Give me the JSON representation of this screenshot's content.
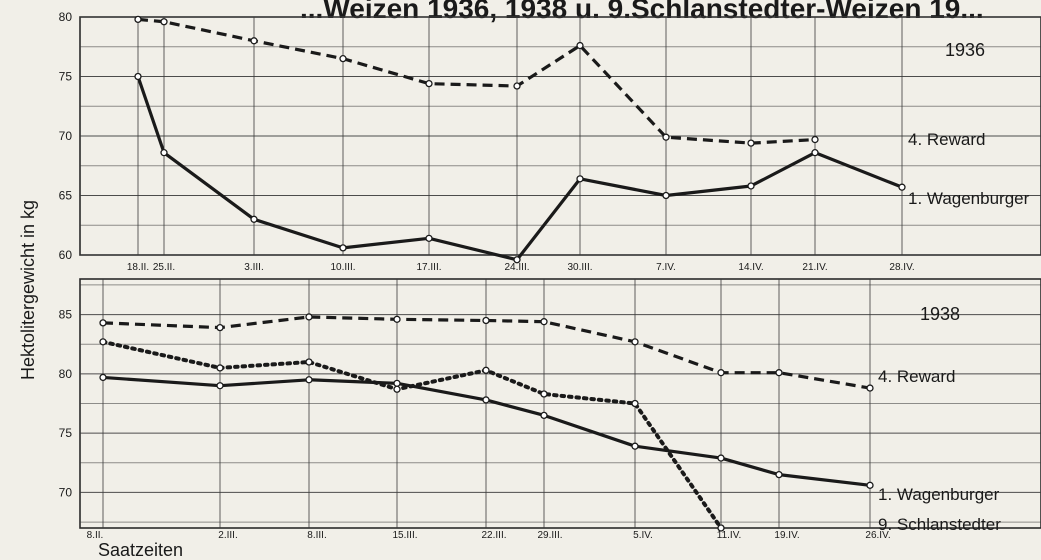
{
  "title": "...Weizen 1936, 1938 u. 9.Schlanstedter-Weizen 19...",
  "ylabel": "Hektolitergewicht in kg",
  "xlabel": "Saatzeiten",
  "chart_data": [
    {
      "type": "line",
      "year_label": "1936",
      "ylim": [
        60,
        80
      ],
      "yticks": [
        "60",
        "65",
        "70",
        "75",
        "80"
      ],
      "x": [
        "18.II.",
        "25.II.",
        "3.III.",
        "10.III.",
        "17.III.",
        "24.III.",
        "30.III.",
        "7.IV.",
        "14.IV.",
        "21.IV.",
        "28.IV."
      ],
      "series": [
        {
          "name": "4. Reward",
          "style": "dashed",
          "values": [
            79.8,
            79.6,
            78.0,
            76.5,
            74.4,
            74.2,
            77.6,
            69.9,
            69.4,
            69.7,
            null
          ]
        },
        {
          "name": "1. Wagenburger",
          "style": "solid",
          "values": [
            75.0,
            68.6,
            63.0,
            60.6,
            61.4,
            59.6,
            66.4,
            65.0,
            65.8,
            68.6,
            65.7
          ]
        }
      ]
    },
    {
      "type": "line",
      "year_label": "1938",
      "ylim": [
        67,
        88
      ],
      "yticks": [
        "70",
        "75",
        "80",
        "85"
      ],
      "x": [
        "8.II.",
        "2.III.",
        "8.III.",
        "15.III.",
        "22.III.",
        "29.III.",
        "5.IV.",
        "11.IV.",
        "19.IV.",
        "26.IV."
      ],
      "series": [
        {
          "name": "4. Reward",
          "style": "dashed",
          "values": [
            84.3,
            83.9,
            84.8,
            84.6,
            84.5,
            84.4,
            82.7,
            80.1,
            80.1,
            78.8
          ]
        },
        {
          "name": "1. Wagenburger",
          "style": "solid",
          "values": [
            79.7,
            79.0,
            79.5,
            79.2,
            77.8,
            76.5,
            73.9,
            72.9,
            71.5,
            70.6
          ]
        },
        {
          "name": "9. Schlanstedter",
          "style": "dotted",
          "values": [
            82.7,
            80.5,
            81.0,
            78.7,
            80.3,
            78.3,
            77.5,
            67.0,
            null,
            null
          ]
        }
      ]
    }
  ]
}
